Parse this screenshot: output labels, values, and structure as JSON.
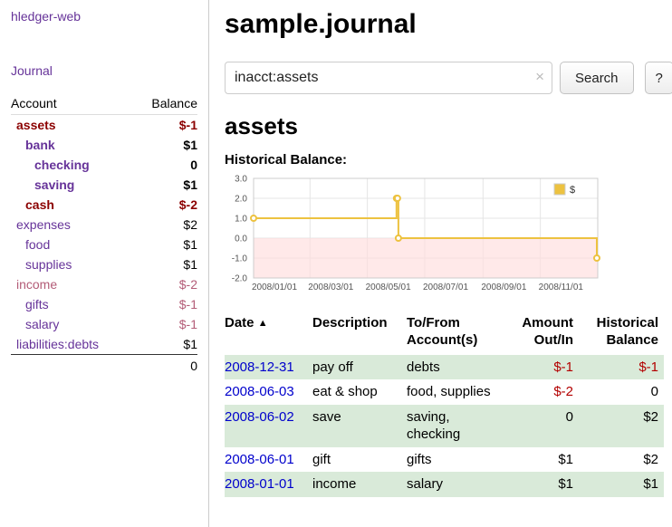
{
  "app": {
    "title": "hledger-web"
  },
  "colors": {
    "link_purple": "#663399",
    "link_blue": "#0000cc",
    "negative_strong": "#8b0000",
    "negative_soft": "#b35c77",
    "negative_red": "#b30000",
    "row_highlight": "#d9ead9",
    "series_yellow": "#edc240",
    "chart_negative_bg": "#ffdddd"
  },
  "sidebar": {
    "nav_journal": "Journal",
    "accounts": {
      "col_account": "Account",
      "col_balance": "Balance",
      "rows": [
        {
          "name": "assets",
          "balance": "$-1",
          "level": 0,
          "bold": true,
          "name_color": "#8b0000",
          "balance_color": "#8b0000"
        },
        {
          "name": "bank",
          "balance": "$1",
          "level": 1,
          "bold": true,
          "name_color": "#663399",
          "balance_color": "#000000"
        },
        {
          "name": "checking",
          "balance": "0",
          "level": 2,
          "bold": true,
          "name_color": "#663399",
          "balance_color": "#000000"
        },
        {
          "name": "saving",
          "balance": "$1",
          "level": 2,
          "bold": true,
          "name_color": "#663399",
          "balance_color": "#000000"
        },
        {
          "name": "cash",
          "balance": "$-2",
          "level": 1,
          "bold": true,
          "name_color": "#8b0000",
          "balance_color": "#8b0000"
        },
        {
          "name": "expenses",
          "balance": "$2",
          "level": 0,
          "bold": false,
          "name_color": "#663399",
          "balance_color": "#000000"
        },
        {
          "name": "food",
          "balance": "$1",
          "level": 1,
          "bold": false,
          "name_color": "#663399",
          "balance_color": "#000000"
        },
        {
          "name": "supplies",
          "balance": "$1",
          "level": 1,
          "bold": false,
          "name_color": "#663399",
          "balance_color": "#000000"
        },
        {
          "name": "income",
          "balance": "$-2",
          "level": 0,
          "bold": false,
          "name_color": "#b35c77",
          "balance_color": "#b35c77"
        },
        {
          "name": "gifts",
          "balance": "$-1",
          "level": 1,
          "bold": false,
          "name_color": "#663399",
          "balance_color": "#b35c77"
        },
        {
          "name": "salary",
          "balance": "$-1",
          "level": 1,
          "bold": false,
          "name_color": "#663399",
          "balance_color": "#b35c77"
        },
        {
          "name": "liabilities:debts",
          "balance": "$1",
          "level": 0,
          "bold": false,
          "name_color": "#663399",
          "balance_color": "#000000"
        }
      ],
      "total": "0"
    }
  },
  "main": {
    "title": "sample.journal",
    "search": {
      "value": "inacct:assets",
      "clear": "×",
      "search_label": "Search",
      "help_label": "?"
    },
    "heading": "assets",
    "chart_label": "Historical Balance:"
  },
  "chart_data": {
    "type": "line",
    "step": true,
    "title": "Historical Balance",
    "series": [
      {
        "name": "$",
        "color": "#edc240",
        "points": [
          [
            "2008-01-01",
            1
          ],
          [
            "2008-06-01",
            2
          ],
          [
            "2008-06-02",
            2
          ],
          [
            "2008-06-03",
            0
          ],
          [
            "2008-12-31",
            -1
          ]
        ]
      }
    ],
    "x_range": [
      "2008-01-01",
      "2009-01-01"
    ],
    "ylim": [
      -2,
      3
    ],
    "y_ticks": [
      "3.0",
      "2.0",
      "1.0",
      "0.0",
      "-1.0",
      "-2.0"
    ],
    "x_ticks": [
      "2008/01/01",
      "2008/03/01",
      "2008/05/01",
      "2008/07/01",
      "2008/09/01",
      "2008/11/01"
    ],
    "legend": {
      "label": "$",
      "position": "top-right"
    },
    "negative_region_color": "#ffdddd",
    "grid": true
  },
  "transactions": {
    "headers": {
      "date": "Date",
      "sort_indicator": "▲",
      "description": "Description",
      "accounts": "To/From Account(s)",
      "amount": "Amount Out/In",
      "balance": "Historical Balance"
    },
    "rows": [
      {
        "date": "2008-12-31",
        "description": "pay off",
        "accounts": "debts",
        "amount": "$-1",
        "balance": "$-1",
        "amount_color": "#b30000",
        "balance_color": "#b30000",
        "highlight": true
      },
      {
        "date": "2008-06-03",
        "description": "eat & shop",
        "accounts": "food, supplies",
        "amount": "$-2",
        "balance": "0",
        "amount_color": "#b30000",
        "balance_color": "#000000",
        "highlight": false
      },
      {
        "date": "2008-06-02",
        "description": "save",
        "accounts": "saving, checking",
        "amount": "0",
        "balance": "$2",
        "amount_color": "#000000",
        "balance_color": "#000000",
        "highlight": true
      },
      {
        "date": "2008-06-01",
        "description": "gift",
        "accounts": "gifts",
        "amount": "$1",
        "balance": "$2",
        "amount_color": "#000000",
        "balance_color": "#000000",
        "highlight": false
      },
      {
        "date": "2008-01-01",
        "description": "income",
        "accounts": "salary",
        "amount": "$1",
        "balance": "$1",
        "amount_color": "#000000",
        "balance_color": "#000000",
        "highlight": true
      }
    ]
  }
}
